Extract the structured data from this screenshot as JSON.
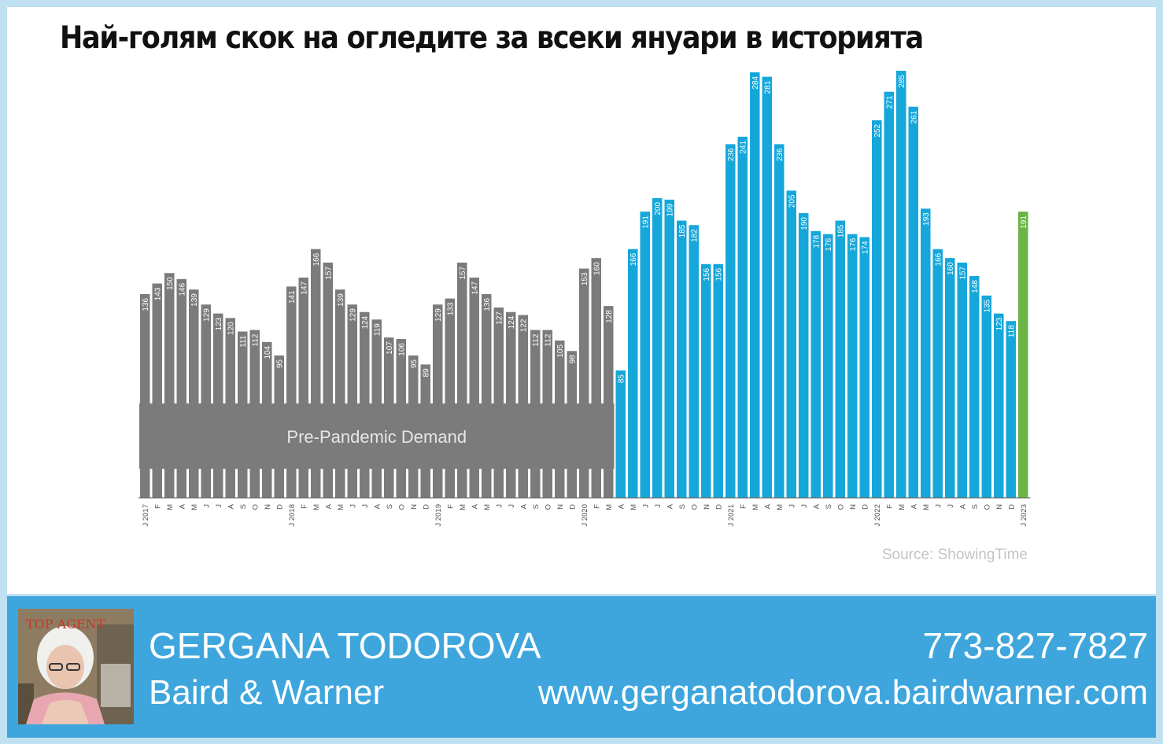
{
  "title": "Най-голям скок на огледите за всеки януари в историята",
  "chart_data": {
    "type": "bar",
    "region_label": "Pre-Pandemic  Demand",
    "source": "Source: ShowingTime",
    "categories": [
      "J 2017",
      "F",
      "M",
      "A",
      "M",
      "J",
      "J",
      "A",
      "S",
      "O",
      "N",
      "D",
      "J 2018",
      "F",
      "M",
      "A",
      "M",
      "J",
      "J",
      "A",
      "S",
      "O",
      "N",
      "D",
      "J 2019",
      "F",
      "M",
      "A",
      "M",
      "J",
      "J",
      "A",
      "S",
      "O",
      "N",
      "D",
      "J 2020",
      "F",
      "M",
      "A",
      "M",
      "J",
      "J",
      "A",
      "S",
      "O",
      "N",
      "D",
      "J 2021",
      "F",
      "M",
      "A",
      "M",
      "J",
      "J",
      "A",
      "S",
      "O",
      "N",
      "D",
      "J 2022",
      "F",
      "M",
      "A",
      "M",
      "J",
      "J",
      "A",
      "S",
      "O",
      "N",
      "D",
      "J 2023"
    ],
    "values": [
      136,
      143,
      150,
      146,
      139,
      129,
      123,
      120,
      111,
      112,
      104,
      95,
      141,
      147,
      166,
      157,
      139,
      129,
      124,
      119,
      107,
      106,
      95,
      89,
      129,
      133,
      157,
      147,
      136,
      127,
      124,
      122,
      112,
      112,
      105,
      98,
      153,
      160,
      128,
      85,
      166,
      191,
      200,
      199,
      185,
      182,
      156,
      156,
      236,
      241,
      284,
      281,
      236,
      205,
      190,
      178,
      176,
      185,
      176,
      174,
      252,
      271,
      285,
      261,
      193,
      166,
      160,
      157,
      148,
      135,
      123,
      118,
      191
    ],
    "value_labels": [
      "136",
      "143",
      "150",
      "146",
      "139",
      "129",
      "123",
      "120",
      "111",
      "112",
      "104",
      "95",
      "141",
      "147",
      "166",
      "157",
      "139",
      "129",
      "124",
      "119",
      "107",
      "106",
      "95",
      "89",
      "129",
      "133",
      "157",
      "147",
      "136",
      "127",
      "124",
      "122",
      "112",
      "112",
      "105",
      "98",
      "153",
      "160",
      "128",
      "85",
      "166",
      "191",
      "200",
      "199",
      "185",
      "182",
      "156",
      "156",
      "236",
      "241",
      "284",
      "281",
      "236",
      "205",
      "190",
      "178",
      "176",
      "185",
      "176",
      "174",
      "252",
      "271",
      "285",
      "261",
      "193",
      "166",
      "160",
      "157",
      "148",
      "135",
      "123",
      "118",
      "191"
    ],
    "ylim": [
      0,
      285
    ],
    "groups": [
      {
        "from": 0,
        "to": 38,
        "color": "#7b7b7b"
      },
      {
        "from": 39,
        "to": 71,
        "color": "#16a7da"
      },
      {
        "from": 72,
        "to": 72,
        "color": "#6ab545"
      }
    ],
    "xlabel": "",
    "ylabel": "",
    "grid": false,
    "legend": "none"
  },
  "footer": {
    "name": "GERGANA TODOROVA",
    "company": "Baird & Warner",
    "phone": "773-827-7827",
    "website": "www.gerganatodorova.bairdwarner.com",
    "photo_badge": "TOP AGENT MAGAZINE"
  },
  "colors": {
    "background": "#bfe1f2",
    "footer": "#3ea6dd",
    "prepandemic": "#7b7b7b",
    "pandemic": "#16a7da",
    "latest": "#6ab545"
  }
}
